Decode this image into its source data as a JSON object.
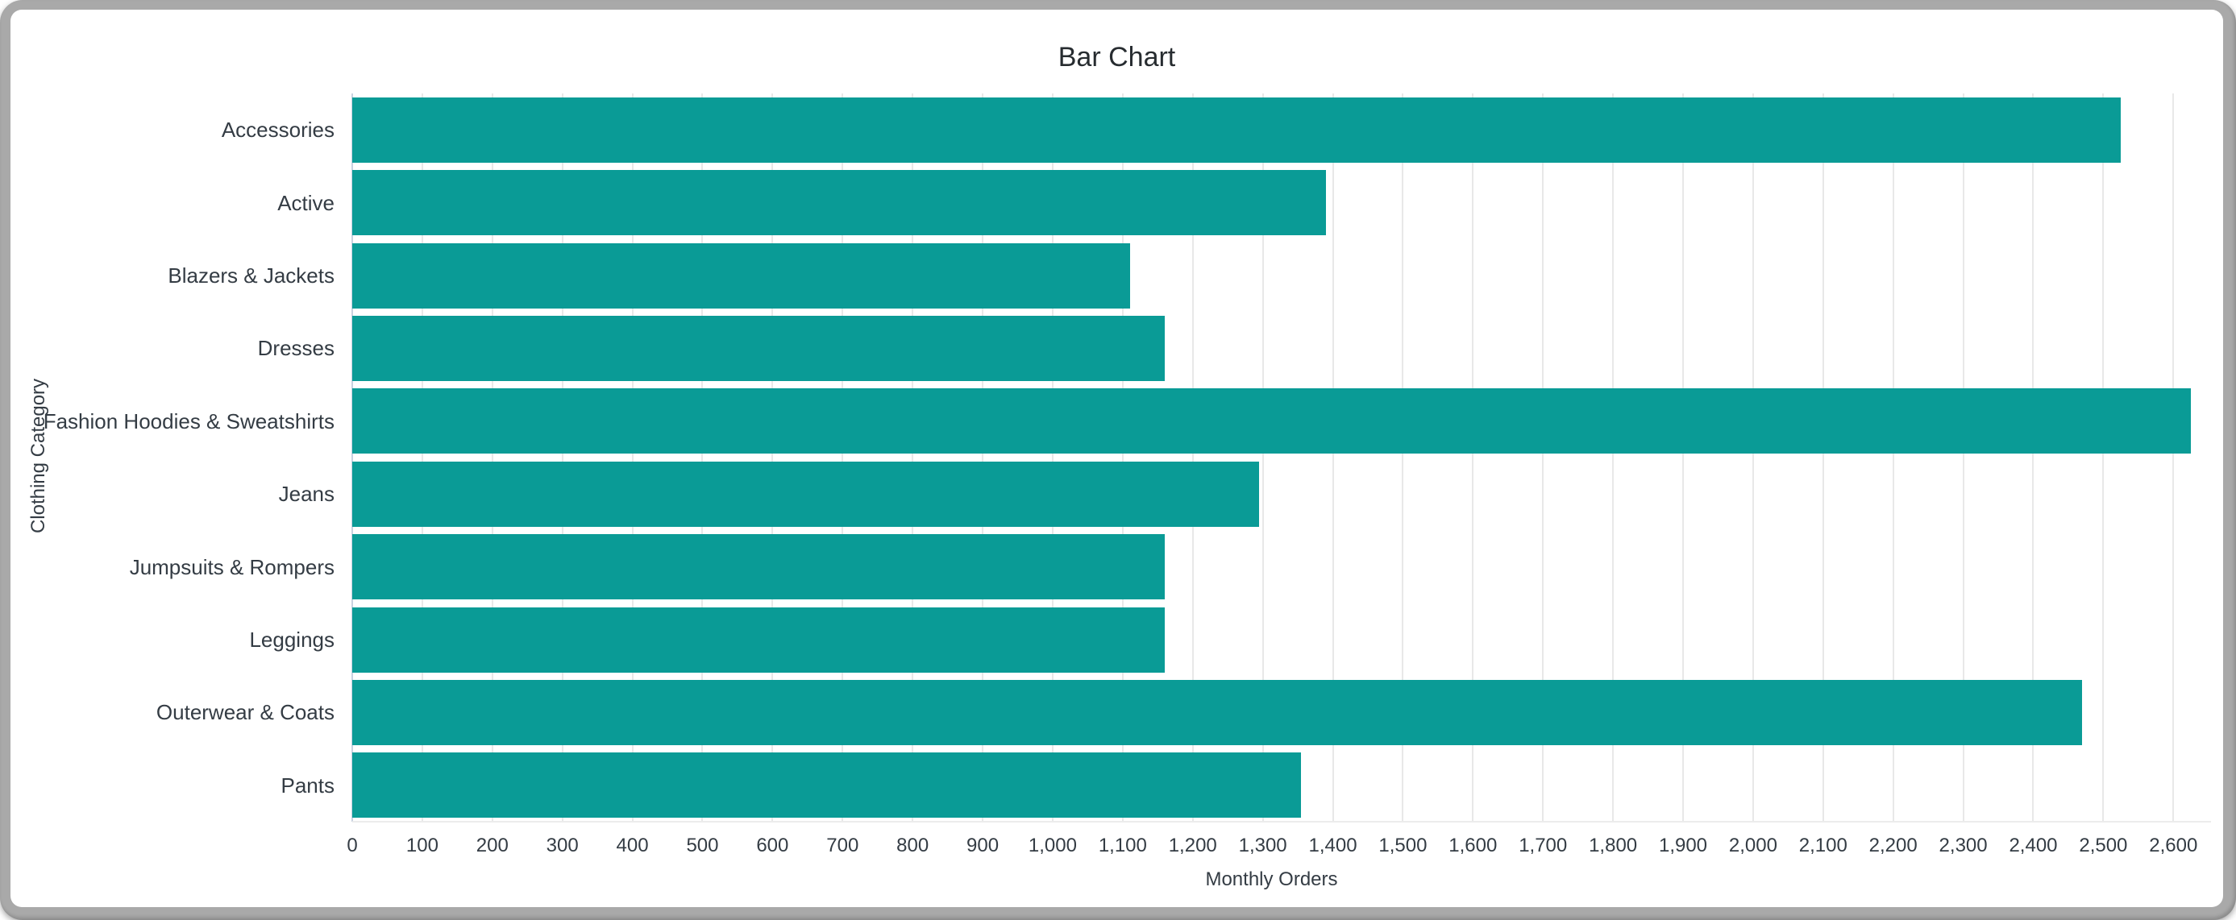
{
  "window": {
    "frame_color": "#a9a9a9",
    "card_color": "#ffffff"
  },
  "chart_data": {
    "type": "bar",
    "orientation": "horizontal",
    "title": "Bar Chart",
    "xlabel": "Monthly Orders",
    "ylabel": "Clothing Category",
    "categories": [
      "Accessories",
      "Active",
      "Blazers & Jackets",
      "Dresses",
      "Fashion Hoodies & Sweatshirts",
      "Jeans",
      "Jumpsuits & Rompers",
      "Leggings",
      "Outerwear & Coats",
      "Pants"
    ],
    "values": [
      2525,
      1390,
      1110,
      1160,
      2625,
      1295,
      1160,
      1160,
      2470,
      1355
    ],
    "xlim": [
      0,
      2625
    ],
    "x_tick_step": 100,
    "x_tick_labels": [
      "0",
      "100",
      "200",
      "300",
      "400",
      "500",
      "600",
      "700",
      "800",
      "900",
      "1,000",
      "1,100",
      "1,200",
      "1,300",
      "1,400",
      "1,500",
      "1,600",
      "1,700",
      "1,800",
      "1,900",
      "2,000",
      "2,100",
      "2,200",
      "2,300",
      "2,400",
      "2,500",
      "2,600"
    ],
    "grid": true,
    "legend": "none",
    "bar_color": "#0a9b96",
    "gridline_color": "#e8e8e8",
    "text_color": "#343c44",
    "title_color": "#272c30"
  }
}
